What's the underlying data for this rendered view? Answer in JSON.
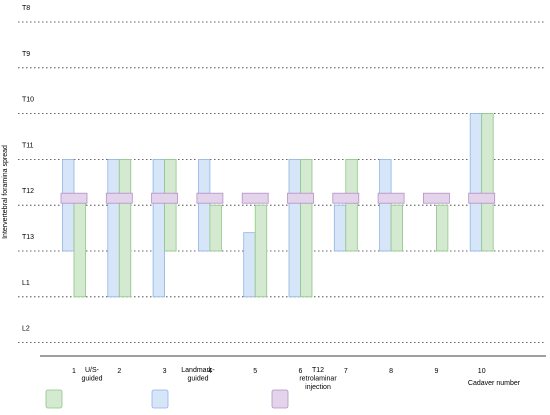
{
  "chart_data": {
    "type": "bar",
    "subtype": "floating-range",
    "ylabel": "Intervertebral foramina spread",
    "xlabel": "Cadaver number",
    "levels": [
      "T8",
      "T9",
      "T10",
      "T11",
      "T12",
      "T13",
      "L1",
      "L2"
    ],
    "levels_axis": "top-to-bottom",
    "grid": "dotted horizontal lines at each level",
    "categories": [
      "1",
      "2",
      "3",
      "4",
      "5",
      "6",
      "7",
      "8",
      "9",
      "10"
    ],
    "series": [
      {
        "name": "U/S-guided",
        "color": "#d4ead0",
        "stroke": "#8fc587",
        "ranges": [
          [
            3.8,
            6.0
          ],
          [
            3.0,
            6.0
          ],
          [
            3.0,
            5.0
          ],
          [
            4.0,
            5.0
          ],
          [
            4.0,
            6.0
          ],
          [
            3.0,
            6.0
          ],
          [
            3.0,
            5.0
          ],
          [
            4.0,
            5.0
          ],
          [
            4.0,
            5.0
          ],
          [
            2.0,
            5.0
          ]
        ]
      },
      {
        "name": "Landmark-guided",
        "color": "#d6e6f8",
        "stroke": "#8fb3e3",
        "ranges": [
          [
            3.0,
            5.0
          ],
          [
            3.0,
            6.0
          ],
          [
            3.0,
            6.0
          ],
          [
            3.0,
            5.0
          ],
          [
            4.6,
            6.0
          ],
          [
            3.0,
            6.0
          ],
          [
            4.0,
            5.0
          ],
          [
            3.0,
            5.0
          ],
          null,
          [
            2.0,
            5.0
          ]
        ]
      },
      {
        "name": "T12 retrolaminar injection",
        "color": "#e3d4eb",
        "stroke": "#b48fc6",
        "values": [
          "T12",
          "T12",
          "T12",
          "T12",
          "T12",
          "T12",
          "T12",
          "T12",
          "T12",
          "T12"
        ]
      }
    ],
    "legend": [
      {
        "label": "U/S-\nguided",
        "color": "#d4ead0",
        "stroke": "#8fc587"
      },
      {
        "label": "Landmark-\nguided",
        "color": "#d6e6f8",
        "stroke": "#8fb3e3"
      },
      {
        "label": "T12\nretrolaminar\ninjection",
        "color": "#e3d4eb",
        "stroke": "#b48fc6"
      }
    ],
    "legend_position": "bottom"
  }
}
